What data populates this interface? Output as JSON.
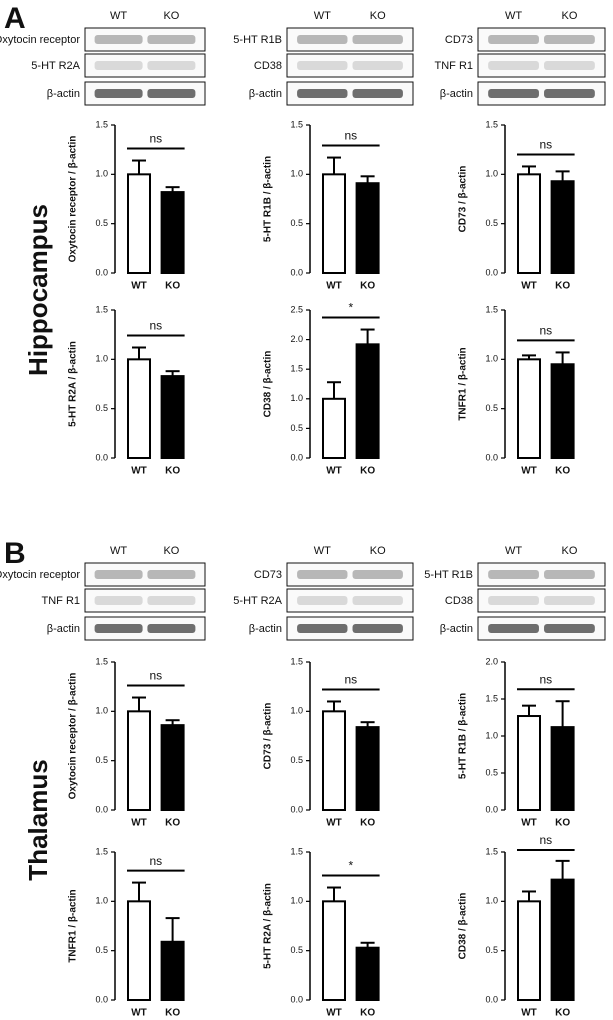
{
  "panels": [
    {
      "label": "A",
      "region": "Hippocampus",
      "blots": [
        {
          "lanes": [
            "WT",
            "KO"
          ],
          "rows": [
            "Oxytocin receptor",
            "5-HT R2A",
            "β-actin"
          ]
        },
        {
          "lanes": [
            "WT",
            "KO"
          ],
          "rows": [
            "5-HT R1B",
            "CD38",
            "β-actin"
          ]
        },
        {
          "lanes": [
            "WT",
            "KO"
          ],
          "rows": [
            "CD73",
            "TNF R1",
            "β-actin"
          ]
        }
      ]
    },
    {
      "label": "B",
      "region": "Thalamus",
      "blots": [
        {
          "lanes": [
            "WT",
            "KO"
          ],
          "rows": [
            "Oxytocin receptor",
            "TNF R1",
            "β-actin"
          ]
        },
        {
          "lanes": [
            "WT",
            "KO"
          ],
          "rows": [
            "CD73",
            "5-HT R2A",
            "β-actin"
          ]
        },
        {
          "lanes": [
            "WT",
            "KO"
          ],
          "rows": [
            "5-HT R1B",
            "CD38",
            "β-actin"
          ]
        }
      ]
    }
  ],
  "chart_data": [
    {
      "type": "bar",
      "ylabel": "Oxytocin receptor / β-actin",
      "categories": [
        "WT",
        "KO"
      ],
      "values": [
        1.0,
        0.82
      ],
      "errors": [
        0.14,
        0.05
      ],
      "colors": [
        "#ffffff",
        "#000000"
      ],
      "annotation": "ns",
      "ylim": [
        0,
        1.5
      ],
      "yticks": [
        {
          "value": 0,
          "label": "0.0"
        },
        {
          "value": 0.5,
          "label": "0.5"
        },
        {
          "value": 1,
          "label": "1.0"
        },
        {
          "value": 1.5,
          "label": "1.5"
        }
      ]
    },
    {
      "type": "bar",
      "ylabel": "5-HT R1B / β-actin",
      "categories": [
        "WT",
        "KO"
      ],
      "values": [
        1.0,
        0.91
      ],
      "errors": [
        0.17,
        0.07
      ],
      "colors": [
        "#ffffff",
        "#000000"
      ],
      "annotation": "ns",
      "ylim": [
        0,
        1.5
      ],
      "yticks": [
        {
          "value": 0,
          "label": "0.0"
        },
        {
          "value": 0.5,
          "label": "0.5"
        },
        {
          "value": 1,
          "label": "1.0"
        },
        {
          "value": 1.5,
          "label": "1.5"
        }
      ]
    },
    {
      "type": "bar",
      "ylabel": "CD73 / β-actin",
      "categories": [
        "WT",
        "KO"
      ],
      "values": [
        1.0,
        0.93
      ],
      "errors": [
        0.08,
        0.1
      ],
      "colors": [
        "#ffffff",
        "#000000"
      ],
      "annotation": "ns",
      "ylim": [
        0,
        1.5
      ],
      "yticks": [
        {
          "value": 0,
          "label": "0.0"
        },
        {
          "value": 0.5,
          "label": "0.5"
        },
        {
          "value": 1,
          "label": "1.0"
        },
        {
          "value": 1.5,
          "label": "1.5"
        }
      ]
    },
    {
      "type": "bar",
      "ylabel": "5-HT R2A / β-actin",
      "categories": [
        "WT",
        "KO"
      ],
      "values": [
        1.0,
        0.83
      ],
      "errors": [
        0.12,
        0.05
      ],
      "colors": [
        "#ffffff",
        "#000000"
      ],
      "annotation": "ns",
      "ylim": [
        0,
        1.5
      ],
      "yticks": [
        {
          "value": 0,
          "label": "0.0"
        },
        {
          "value": 0.5,
          "label": "0.5"
        },
        {
          "value": 1,
          "label": "1.0"
        },
        {
          "value": 1.5,
          "label": "1.5"
        }
      ]
    },
    {
      "type": "bar",
      "ylabel": "CD38 / β-actin",
      "categories": [
        "WT",
        "KO"
      ],
      "values": [
        1.0,
        1.92
      ],
      "errors": [
        0.28,
        0.25
      ],
      "colors": [
        "#ffffff",
        "#000000"
      ],
      "annotation": "*",
      "ylim": [
        0,
        2.5
      ],
      "yticks": [
        {
          "value": 0,
          "label": "0.0"
        },
        {
          "value": 0.5,
          "label": "0.5"
        },
        {
          "value": 1,
          "label": "1.0"
        },
        {
          "value": 1.5,
          "label": "1.5"
        },
        {
          "value": 2,
          "label": "2.0"
        },
        {
          "value": 2.5,
          "label": "2.5"
        }
      ]
    },
    {
      "type": "bar",
      "ylabel": "TNFR1 / β-actin",
      "categories": [
        "WT",
        "KO"
      ],
      "values": [
        1.0,
        0.95
      ],
      "errors": [
        0.04,
        0.12
      ],
      "colors": [
        "#ffffff",
        "#000000"
      ],
      "annotation": "ns",
      "ylim": [
        0,
        1.5
      ],
      "yticks": [
        {
          "value": 0,
          "label": "0.0"
        },
        {
          "value": 0.5,
          "label": "0.5"
        },
        {
          "value": 1,
          "label": "1.0"
        },
        {
          "value": 1.5,
          "label": "1.5"
        }
      ]
    },
    {
      "type": "bar",
      "ylabel": "Oxytocin receptor / β-actin",
      "categories": [
        "WT",
        "KO"
      ],
      "values": [
        1.0,
        0.86
      ],
      "errors": [
        0.14,
        0.05
      ],
      "colors": [
        "#ffffff",
        "#000000"
      ],
      "annotation": "ns",
      "ylim": [
        0,
        1.5
      ],
      "yticks": [
        {
          "value": 0,
          "label": "0.0"
        },
        {
          "value": 0.5,
          "label": "0.5"
        },
        {
          "value": 1,
          "label": "1.0"
        },
        {
          "value": 1.5,
          "label": "1.5"
        }
      ]
    },
    {
      "type": "bar",
      "ylabel": "CD73 / β-actin",
      "categories": [
        "WT",
        "KO"
      ],
      "values": [
        1.0,
        0.84
      ],
      "errors": [
        0.1,
        0.05
      ],
      "colors": [
        "#ffffff",
        "#000000"
      ],
      "annotation": "ns",
      "ylim": [
        0,
        1.5
      ],
      "yticks": [
        {
          "value": 0,
          "label": "0.0"
        },
        {
          "value": 0.5,
          "label": "0.5"
        },
        {
          "value": 1,
          "label": "1.0"
        },
        {
          "value": 1.5,
          "label": "1.5"
        }
      ]
    },
    {
      "type": "bar",
      "ylabel": "5-HT R1B / β-actin",
      "categories": [
        "WT",
        "KO"
      ],
      "values": [
        1.27,
        1.12
      ],
      "errors": [
        0.14,
        0.35
      ],
      "colors": [
        "#ffffff",
        "#000000"
      ],
      "annotation": "ns",
      "ylim": [
        0,
        2
      ],
      "yticks": [
        {
          "value": 0,
          "label": "0.0"
        },
        {
          "value": 0.5,
          "label": "0.5"
        },
        {
          "value": 1,
          "label": "1.0"
        },
        {
          "value": 1.5,
          "label": "1.5"
        },
        {
          "value": 2,
          "label": "2.0"
        }
      ]
    },
    {
      "type": "bar",
      "ylabel": "TNFR1 / β-actin",
      "categories": [
        "WT",
        "KO"
      ],
      "values": [
        1.0,
        0.59
      ],
      "errors": [
        0.19,
        0.24
      ],
      "colors": [
        "#ffffff",
        "#000000"
      ],
      "annotation": "ns",
      "ylim": [
        0,
        1.5
      ],
      "yticks": [
        {
          "value": 0,
          "label": "0.0"
        },
        {
          "value": 0.5,
          "label": "0.5"
        },
        {
          "value": 1,
          "label": "1.0"
        },
        {
          "value": 1.5,
          "label": "1.5"
        }
      ]
    },
    {
      "type": "bar",
      "ylabel": "5-HT R2A / β-actin",
      "categories": [
        "WT",
        "KO"
      ],
      "values": [
        1.0,
        0.53
      ],
      "errors": [
        0.14,
        0.05
      ],
      "colors": [
        "#ffffff",
        "#000000"
      ],
      "annotation": "*",
      "ylim": [
        0,
        1.5
      ],
      "yticks": [
        {
          "value": 0,
          "label": "0.0"
        },
        {
          "value": 0.5,
          "label": "0.5"
        },
        {
          "value": 1,
          "label": "1.0"
        },
        {
          "value": 1.5,
          "label": "1.5"
        }
      ]
    },
    {
      "type": "bar",
      "ylabel": "CD38 / β-actin",
      "categories": [
        "WT",
        "KO"
      ],
      "values": [
        1.0,
        1.22
      ],
      "errors": [
        0.1,
        0.19
      ],
      "colors": [
        "#ffffff",
        "#000000"
      ],
      "annotation": "ns",
      "ylim": [
        0,
        1.5
      ],
      "yticks": [
        {
          "value": 0,
          "label": "0.0"
        },
        {
          "value": 0.5,
          "label": "0.5"
        },
        {
          "value": 1,
          "label": "1.0"
        },
        {
          "value": 1.5,
          "label": "1.5"
        }
      ]
    }
  ]
}
